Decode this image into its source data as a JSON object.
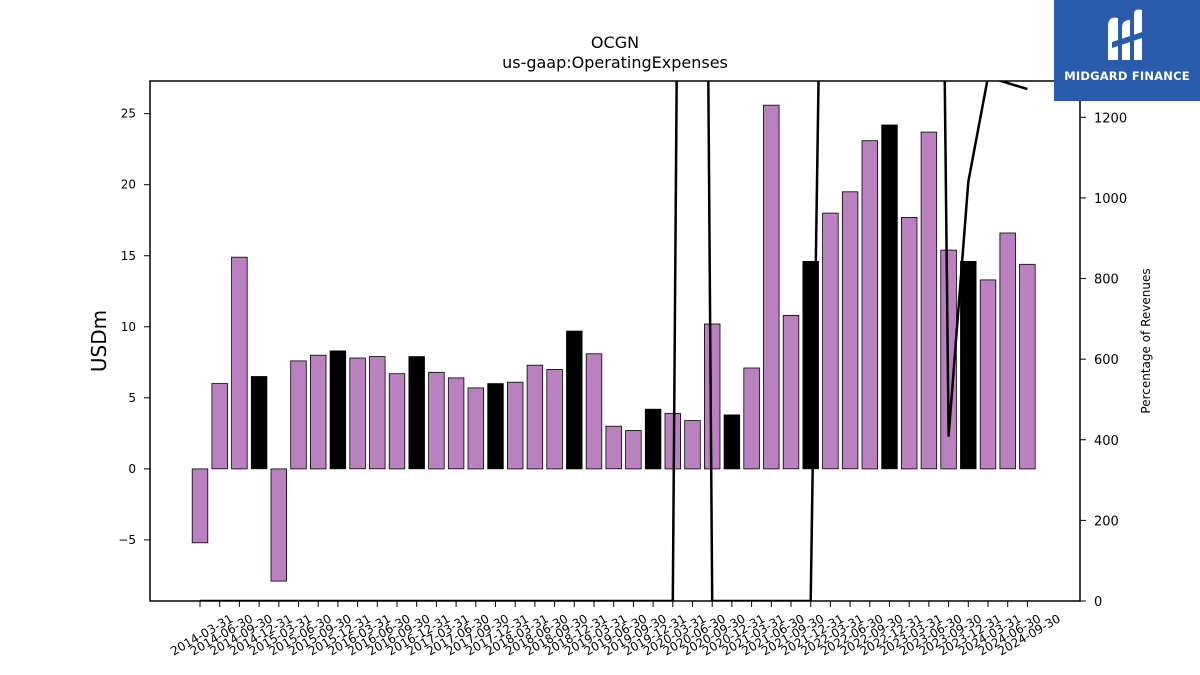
{
  "chart_data": {
    "type": "bar",
    "title": "OCGN",
    "subtitle": "us-gaap:OperatingExpenses",
    "ylabel": "USDm",
    "y2label": "Percentage of Revenues",
    "ylim": [
      -9.3,
      27.3
    ],
    "y2lim": [
      0,
      1290
    ],
    "yticks": [
      -5,
      0,
      5,
      10,
      15,
      20,
      25
    ],
    "y2ticks": [
      0,
      200,
      400,
      600,
      800,
      1000,
      1200
    ],
    "categories": [
      "2014-03-31",
      "2014-06-30",
      "2014-09-30",
      "2014-12-31",
      "2015-03-31",
      "2015-06-30",
      "2015-09-30",
      "2015-12-31",
      "2016-03-31",
      "2016-06-30",
      "2016-09-30",
      "2016-12-31",
      "2017-03-31",
      "2017-06-30",
      "2017-09-30",
      "2017-12-31",
      "2018-03-31",
      "2018-06-30",
      "2018-09-30",
      "2018-12-31",
      "2019-03-31",
      "2019-06-30",
      "2019-09-30",
      "2019-12-31",
      "2020-03-31",
      "2020-06-30",
      "2020-09-30",
      "2020-12-31",
      "2021-03-31",
      "2021-06-30",
      "2021-09-30",
      "2021-12-31",
      "2022-03-31",
      "2022-06-30",
      "2022-09-30",
      "2022-12-31",
      "2023-03-31",
      "2023-06-30",
      "2023-09-30",
      "2023-12-31",
      "2024-03-31",
      "2024-06-30",
      "2024-09-30"
    ],
    "values": [
      -5.2,
      6.0,
      14.9,
      6.5,
      -7.9,
      7.6,
      8.0,
      8.3,
      7.8,
      7.9,
      6.7,
      7.9,
      6.8,
      6.4,
      5.7,
      6.0,
      6.1,
      7.3,
      7.0,
      9.7,
      8.1,
      3.0,
      2.7,
      4.2,
      3.9,
      3.4,
      10.2,
      3.8,
      7.1,
      25.6,
      10.8,
      14.6,
      18.0,
      19.5,
      23.1,
      24.2,
      17.7,
      23.7,
      15.4,
      14.6,
      13.3,
      16.6,
      14.4
    ],
    "annual": [
      false,
      false,
      false,
      true,
      false,
      false,
      false,
      true,
      false,
      false,
      false,
      true,
      false,
      false,
      false,
      true,
      false,
      false,
      false,
      true,
      false,
      false,
      false,
      true,
      false,
      false,
      false,
      true,
      false,
      false,
      false,
      true,
      false,
      false,
      false,
      true,
      false,
      false,
      false,
      true,
      false,
      false,
      false
    ],
    "series": [
      {
        "name": "Percentage of Revenues",
        "axis": "right",
        "points": [
          [
            0,
            0
          ],
          [
            24,
            0
          ],
          [
            24.2,
            1300
          ],
          [
            25.8,
            1300
          ],
          [
            26,
            0
          ],
          [
            31,
            0
          ],
          [
            31.4,
            1300
          ],
          [
            37.8,
            1300
          ],
          [
            38,
            410
          ],
          [
            39,
            1040
          ],
          [
            40,
            1300
          ],
          [
            42,
            1270
          ]
        ]
      }
    ],
    "colors": {
      "bar": "#bb80bf",
      "annual_bar": "#000000",
      "line": "#000000"
    }
  },
  "logo": {
    "text": "MIDGARD FINANCE"
  }
}
